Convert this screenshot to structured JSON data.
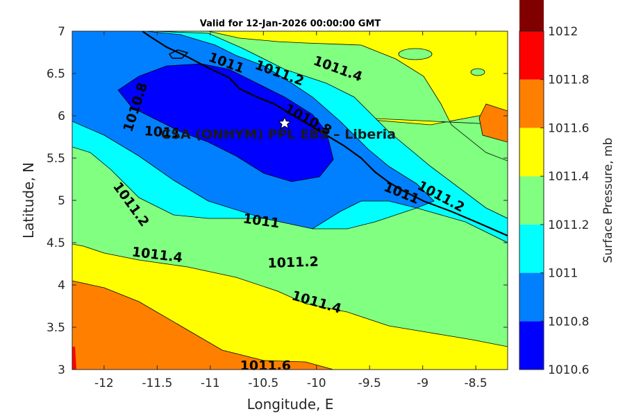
{
  "chart_data": {
    "type": "contour",
    "title": "Valid for 12-Jan-2026 00:00:00 GMT",
    "xlabel": "Longitude, E",
    "ylabel": "Latitude, N",
    "xlim": [
      -12.3,
      -8.2
    ],
    "ylim": [
      3,
      7
    ],
    "x_ticks": [
      -12,
      -11.5,
      -11,
      -10.5,
      -10,
      -9.5,
      -9,
      -8.5
    ],
    "y_ticks": [
      3,
      3.5,
      4,
      4.5,
      5,
      5.5,
      6,
      6.5,
      7
    ],
    "colorbar": {
      "label": "Surface Pressure, mb",
      "levels": [
        1010.6,
        1010.8,
        1011,
        1011.2,
        1011.4,
        1011.6,
        1011.8,
        1012
      ],
      "colors": [
        "#0000ff",
        "#0080ff",
        "#00ffff",
        "#80ff80",
        "#ffff00",
        "#ff8000",
        "#ff0000",
        "#800000"
      ]
    },
    "contour_labels": [
      {
        "text": "1010.8",
        "x": -11.7,
        "y": 6.1,
        "angle": -72
      },
      {
        "text": "1011",
        "x": -10.85,
        "y": 6.62,
        "angle": 20
      },
      {
        "text": "1011.2",
        "x": -10.35,
        "y": 6.5,
        "angle": 20
      },
      {
        "text": "1011.4",
        "x": -9.8,
        "y": 6.55,
        "angle": 20
      },
      {
        "text": "1010.8",
        "x": -10.08,
        "y": 5.95,
        "angle": 28
      },
      {
        "text": "1011",
        "x": -11.45,
        "y": 5.8,
        "angle": 4
      },
      {
        "text": "1011",
        "x": -9.2,
        "y": 5.08,
        "angle": 22
      },
      {
        "text": "1011.2",
        "x": -8.83,
        "y": 5.04,
        "angle": 28
      },
      {
        "text": "1011.2",
        "x": -11.75,
        "y": 4.95,
        "angle": 54
      },
      {
        "text": "1011",
        "x": -10.52,
        "y": 4.75,
        "angle": 8
      },
      {
        "text": "1011.4",
        "x": -11.5,
        "y": 4.35,
        "angle": 7
      },
      {
        "text": "1011.2",
        "x": -10.22,
        "y": 4.26,
        "angle": -2
      },
      {
        "text": "1011.4",
        "x": -10.0,
        "y": 3.79,
        "angle": 16
      },
      {
        "text": "1011.6",
        "x": -10.48,
        "y": 3.04,
        "angle": 0
      }
    ],
    "annotation": {
      "text": "CSA (ONHYM) PPL EBS  – Liberia",
      "x": -10.3,
      "y": 5.91
    },
    "marker": {
      "symbol": "star",
      "x": -10.3,
      "y": 5.91
    }
  }
}
